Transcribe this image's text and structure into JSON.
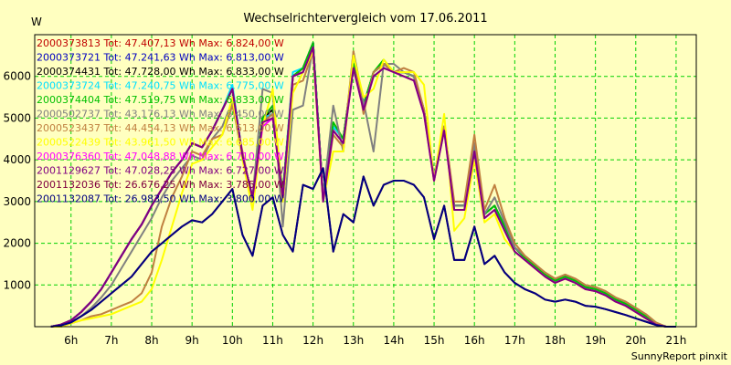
{
  "chart_data": {
    "type": "line",
    "title": "Wechselrichtervergleich vom 17.06.2011",
    "ylabel": "W",
    "footer": "SunnyReport pinxit",
    "ylim": [
      0,
      7000
    ],
    "xlim": [
      5.1,
      21.5
    ],
    "grid": true,
    "legend_position": "top-left",
    "y_ticks": [
      1000,
      2000,
      3000,
      4000,
      5000,
      6000
    ],
    "x_ticks": [
      "6h",
      "7h",
      "8h",
      "9h",
      "10h",
      "11h",
      "12h",
      "13h",
      "14h",
      "15h",
      "16h",
      "17h",
      "18h",
      "19h",
      "20h",
      "21h"
    ],
    "x": [
      5.5,
      5.75,
      6,
      6.25,
      6.5,
      6.75,
      7,
      7.25,
      7.5,
      7.75,
      8,
      8.25,
      8.5,
      8.75,
      9,
      9.25,
      9.5,
      9.75,
      10,
      10.25,
      10.5,
      10.75,
      11,
      11.25,
      11.5,
      11.75,
      12,
      12.25,
      12.5,
      12.75,
      13,
      13.25,
      13.5,
      13.75,
      14,
      14.25,
      14.5,
      14.75,
      15,
      15.25,
      15.5,
      15.75,
      16,
      16.25,
      16.5,
      16.75,
      17,
      17.25,
      17.5,
      17.75,
      18,
      18.25,
      18.5,
      18.75,
      19,
      19.25,
      19.5,
      19.75,
      20,
      20.25,
      20.5,
      20.75,
      21
    ],
    "series": [
      {
        "name": "2000373813 Tot: 47.407,13 Wh Max: 6.824,00 W",
        "color": "#c00000",
        "values": [
          0,
          50,
          150,
          350,
          600,
          900,
          1300,
          1700,
          2100,
          2450,
          2900,
          3300,
          3700,
          4000,
          4400,
          4300,
          4700,
          5200,
          5700,
          4100,
          3100,
          5000,
          5100,
          3200,
          6000,
          6200,
          6800,
          3100,
          4800,
          4500,
          6300,
          5300,
          6100,
          6300,
          6100,
          6100,
          6000,
          5200,
          3600,
          4800,
          2900,
          2900,
          4300,
          2700,
          2900,
          2400,
          1900,
          1650,
          1450,
          1250,
          1100,
          1200,
          1100,
          950,
          900,
          800,
          650,
          550,
          400,
          250,
          80,
          0,
          0
        ]
      },
      {
        "name": "2000373721 Tot: 47.241,63 Wh Max: 6.813,00 W",
        "color": "#0000c0",
        "values": [
          0,
          50,
          150,
          350,
          600,
          900,
          1300,
          1700,
          2100,
          2450,
          2900,
          3300,
          3700,
          4000,
          4400,
          4300,
          4700,
          5200,
          5700,
          4100,
          3100,
          5000,
          5100,
          3200,
          6000,
          6200,
          6800,
          3100,
          4800,
          4500,
          6300,
          5300,
          6100,
          6300,
          6100,
          6100,
          6000,
          5200,
          3600,
          4800,
          2900,
          2900,
          4300,
          2700,
          2900,
          2400,
          1900,
          1650,
          1450,
          1250,
          1100,
          1200,
          1100,
          950,
          900,
          800,
          650,
          550,
          400,
          250,
          80,
          0,
          0
        ]
      },
      {
        "name": "2000374431 Tot: 47.728,00 Wh Max: 6.833,00 W",
        "color": "#000000",
        "values": [
          0,
          50,
          150,
          350,
          600,
          900,
          1300,
          1700,
          2100,
          2450,
          2900,
          3300,
          3700,
          4000,
          4400,
          4300,
          4700,
          5200,
          5700,
          4100,
          3100,
          5000,
          5200,
          3200,
          6000,
          6200,
          6800,
          3100,
          4800,
          4500,
          6300,
          5300,
          6100,
          6300,
          6100,
          6100,
          6000,
          5200,
          3600,
          4800,
          2900,
          2900,
          4300,
          2700,
          2900,
          2400,
          1900,
          1650,
          1450,
          1250,
          1100,
          1200,
          1100,
          950,
          900,
          800,
          650,
          550,
          400,
          250,
          80,
          0,
          0
        ]
      },
      {
        "name": "2000373724 Tot: 47.240,75 Wh Max: 6.775,00 W",
        "color": "#00e0ff",
        "values": [
          0,
          50,
          150,
          350,
          600,
          900,
          1300,
          1700,
          2100,
          2450,
          2900,
          3300,
          3700,
          4000,
          4400,
          4300,
          4700,
          5200,
          5800,
          4100,
          3100,
          5000,
          5100,
          3200,
          6100,
          6200,
          6800,
          3100,
          4800,
          4500,
          6300,
          5300,
          6100,
          6300,
          6100,
          6100,
          6000,
          5200,
          3600,
          4800,
          2900,
          2900,
          4300,
          2700,
          2900,
          2400,
          1900,
          1650,
          1450,
          1250,
          1100,
          1200,
          1100,
          950,
          900,
          800,
          650,
          550,
          400,
          250,
          80,
          0,
          0
        ]
      },
      {
        "name": "2000374404 Tot: 47.519,75 Wh Max: 6.833,00 W",
        "color": "#00c000",
        "values": [
          0,
          50,
          150,
          350,
          600,
          900,
          1300,
          1700,
          2100,
          2450,
          2900,
          3300,
          3700,
          4000,
          4400,
          4300,
          4700,
          5200,
          5700,
          4100,
          3100,
          5000,
          5300,
          3200,
          6000,
          6200,
          6800,
          3100,
          4900,
          4500,
          6300,
          5300,
          6100,
          6400,
          6100,
          6100,
          6000,
          5200,
          3600,
          4800,
          2900,
          2900,
          4300,
          2700,
          2900,
          2400,
          1900,
          1650,
          1450,
          1250,
          1100,
          1200,
          1100,
          950,
          900,
          800,
          650,
          550,
          400,
          250,
          80,
          0,
          0
        ]
      },
      {
        "name": "2000502737 Tot: 43.176,13 Wh Max: 6.450,00 W",
        "color": "#808080",
        "values": [
          0,
          0,
          100,
          250,
          450,
          700,
          1000,
          1400,
          1800,
          2200,
          2600,
          3100,
          3500,
          3800,
          4100,
          4000,
          4500,
          4800,
          5400,
          4000,
          3100,
          5700,
          5600,
          2400,
          5200,
          5300,
          6700,
          3100,
          5300,
          4200,
          6600,
          5400,
          4200,
          6300,
          6300,
          6100,
          6000,
          5200,
          3600,
          4800,
          2900,
          2900,
          4400,
          2700,
          3100,
          2500,
          1900,
          1700,
          1500,
          1300,
          1150,
          1250,
          1150,
          1000,
          950,
          850,
          700,
          600,
          450,
          300,
          100,
          0,
          0
        ]
      },
      {
        "name": "2000523437 Tot: 44.454,13 Wh Max: 6.613,00 W",
        "color": "#c08040",
        "values": [
          0,
          0,
          80,
          150,
          250,
          300,
          400,
          500,
          600,
          800,
          1300,
          2400,
          3100,
          3600,
          4200,
          4100,
          4500,
          4600,
          5300,
          4200,
          3000,
          4900,
          5100,
          3000,
          5800,
          5900,
          6600,
          3000,
          4600,
          4300,
          6600,
          5100,
          6100,
          6300,
          6100,
          6200,
          6100,
          5200,
          3500,
          4800,
          3000,
          3000,
          4600,
          2800,
          3400,
          2600,
          2000,
          1700,
          1500,
          1300,
          1150,
          1250,
          1150,
          1000,
          950,
          850,
          700,
          600,
          450,
          300,
          100,
          0,
          0
        ]
      },
      {
        "name": "2000522439 Tot: 43.961,50 Wh Max: 6.685,00 W",
        "color": "#ffff00",
        "values": [
          0,
          0,
          80,
          150,
          200,
          250,
          300,
          400,
          500,
          600,
          900,
          1600,
          2400,
          3200,
          3900,
          4000,
          4300,
          4600,
          5500,
          4000,
          2800,
          4800,
          5700,
          3000,
          5600,
          6100,
          6600,
          3000,
          4200,
          4200,
          6500,
          5500,
          5700,
          6400,
          6100,
          6100,
          6100,
          5800,
          3500,
          5100,
          2300,
          2600,
          4000,
          2500,
          2700,
          2100,
          1800,
          1600,
          1400,
          1200,
          1050,
          1150,
          1050,
          900,
          850,
          750,
          600,
          500,
          350,
          200,
          50,
          0,
          0
        ]
      },
      {
        "name": "2000376360 Tot: 47.048,88 Wh Max: 6.710,00 W",
        "color": "#ff00ff",
        "values": [
          0,
          50,
          150,
          350,
          600,
          900,
          1300,
          1700,
          2100,
          2450,
          2900,
          3300,
          3700,
          4000,
          4400,
          4300,
          4700,
          5200,
          5700,
          4100,
          3100,
          4800,
          5000,
          3100,
          6000,
          6100,
          6700,
          3000,
          4700,
          4400,
          6200,
          5200,
          6000,
          6200,
          6100,
          6000,
          5900,
          5100,
          3500,
          4700,
          2800,
          2800,
          4200,
          2600,
          2800,
          2300,
          1800,
          1600,
          1400,
          1200,
          1050,
          1150,
          1050,
          900,
          850,
          750,
          600,
          500,
          350,
          200,
          50,
          0,
          0
        ]
      },
      {
        "name": "2001129627 Tot: 47.028,25 Wh Max: 6.727,00 W",
        "color": "#800080",
        "values": [
          0,
          50,
          150,
          350,
          600,
          900,
          1300,
          1700,
          2100,
          2450,
          2900,
          3300,
          3700,
          4000,
          4400,
          4300,
          4700,
          5200,
          5700,
          4100,
          3100,
          4900,
          5000,
          3100,
          6000,
          6100,
          6700,
          3000,
          4700,
          4400,
          6200,
          5200,
          6000,
          6200,
          6100,
          6000,
          5900,
          5100,
          3500,
          4700,
          2800,
          2800,
          4200,
          2600,
          2800,
          2300,
          1800,
          1600,
          1400,
          1200,
          1050,
          1150,
          1050,
          900,
          850,
          750,
          600,
          500,
          350,
          200,
          50,
          0,
          0
        ]
      },
      {
        "name": "2001132036 Tot: 26.676,25 Wh Max: 3.785,00 W",
        "color": "#800040",
        "values": [
          0,
          30,
          100,
          250,
          400,
          600,
          800,
          1000,
          1200,
          1500,
          1800,
          2000,
          2200,
          2400,
          2550,
          2500,
          2700,
          3000,
          3300,
          2200,
          1700,
          2900,
          3100,
          2200,
          1800,
          3400,
          3300,
          3800,
          1800,
          2700,
          2500,
          3600,
          2900,
          3400,
          3500,
          3500,
          3400,
          3100,
          2100,
          2900,
          1600,
          1600,
          2400,
          1500,
          1700,
          1300,
          1050,
          900,
          800,
          650,
          600,
          650,
          600,
          500,
          480,
          420,
          350,
          280,
          200,
          120,
          40,
          0,
          0
        ]
      },
      {
        "name": "2001132087 Tot: 26.983,50 Wh Max: 3.800,00 W",
        "color": "#000080",
        "values": [
          0,
          30,
          100,
          250,
          400,
          600,
          800,
          1000,
          1200,
          1500,
          1800,
          2000,
          2200,
          2400,
          2550,
          2500,
          2700,
          3000,
          3300,
          2200,
          1700,
          2900,
          3100,
          2200,
          1800,
          3400,
          3300,
          3800,
          1800,
          2700,
          2500,
          3600,
          2900,
          3400,
          3500,
          3500,
          3400,
          3100,
          2100,
          2900,
          1600,
          1600,
          2400,
          1500,
          1700,
          1300,
          1050,
          900,
          800,
          650,
          600,
          650,
          600,
          500,
          480,
          420,
          350,
          280,
          200,
          120,
          40,
          0,
          0
        ]
      }
    ]
  }
}
